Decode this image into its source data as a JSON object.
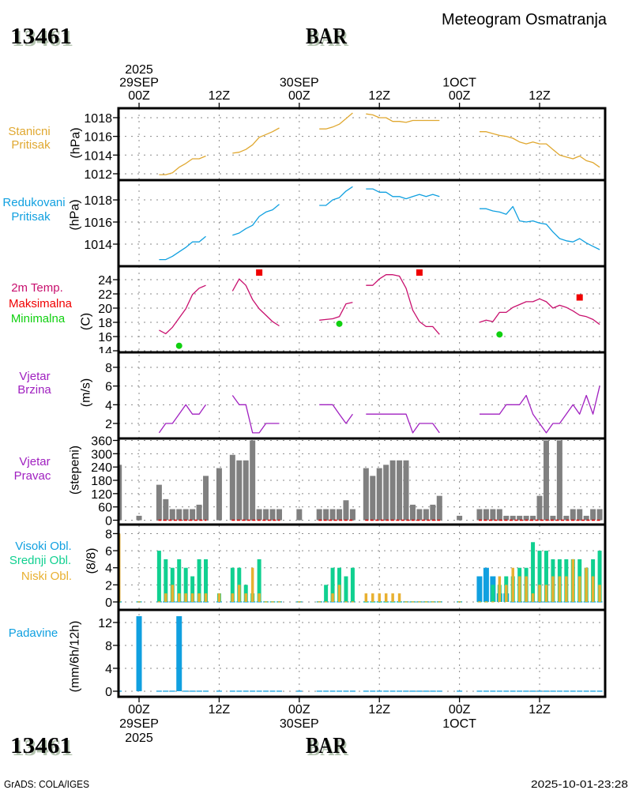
{
  "header": {
    "station_id": "13461",
    "station_name": "BAR",
    "title": "Meteogram Osmatranja"
  },
  "footer": {
    "station_id": "13461",
    "station_name": "BAR",
    "credit": "GrADS: COLA/IGES",
    "timestamp": "2025-10-01-23:28"
  },
  "time_axis": {
    "xlim_hours": [
      -3.08,
      69.82
    ],
    "grid_hours": [
      0,
      12,
      24,
      36,
      48,
      60
    ],
    "top_labels": [
      {
        "hour": 0,
        "lines": [
          "2025",
          "29SEP",
          "00Z"
        ]
      },
      {
        "hour": 12,
        "lines": [
          "12Z"
        ]
      },
      {
        "hour": 24,
        "lines": [
          "30SEP",
          "00Z"
        ]
      },
      {
        "hour": 36,
        "lines": [
          "12Z"
        ]
      },
      {
        "hour": 48,
        "lines": [
          "1OCT",
          "00Z"
        ]
      },
      {
        "hour": 60,
        "lines": [
          "12Z"
        ]
      }
    ],
    "bottom_labels": [
      {
        "hour": 0,
        "lines": [
          "00Z",
          "29SEP",
          "2025"
        ]
      },
      {
        "hour": 12,
        "lines": [
          "12Z"
        ]
      },
      {
        "hour": 24,
        "lines": [
          "00Z",
          "30SEP"
        ]
      },
      {
        "hour": 36,
        "lines": [
          "12Z"
        ]
      },
      {
        "hour": 48,
        "lines": [
          "00Z",
          "1OCT"
        ]
      },
      {
        "hour": 60,
        "lines": [
          "12Z"
        ]
      }
    ]
  },
  "chart_data": [
    {
      "id": "station-pressure",
      "type": "line",
      "title": "Stanicni Pritisak",
      "labels": [
        {
          "text": "Stanicni",
          "color": "#E0A830"
        },
        {
          "text": "Pritisak",
          "color": "#E0A830"
        }
      ],
      "ylabel": "(hPa)",
      "ylim": [
        1011.32,
        1019.01
      ],
      "yticks": [
        1012,
        1014,
        1016,
        1018
      ],
      "grid": true,
      "series": [
        {
          "name": "Stanicni Pritisak",
          "color": "#E0A830",
          "segments": [
            {
              "start_hour": 3,
              "values": [
                1011.9,
                1011.9,
                1012.1,
                1012.7,
                1013.1,
                1013.6,
                1013.6,
                1013.9
              ]
            },
            {
              "start_hour": 14,
              "values": [
                1014.2,
                1014.3,
                1014.6,
                1015.1,
                1015.9,
                1016.2,
                1016.5,
                1016.9
              ]
            },
            {
              "start_hour": 27,
              "values": [
                1016.8,
                1016.8,
                1017.0,
                1017.3,
                1017.9,
                1018.5
              ]
            },
            {
              "start_hour": 34,
              "values": [
                1018.4,
                1018.3,
                1018.0,
                1018.0,
                1017.6,
                1017.6,
                1017.5,
                1017.7,
                1017.7,
                1017.7,
                1017.7,
                1017.7
              ]
            },
            {
              "start_hour": 51,
              "values": [
                1016.5,
                1016.5,
                1016.3,
                1016.1,
                1016.0,
                1015.8,
                1015.4,
                1015.2,
                1015.4,
                1015.2,
                1015.2,
                1014.6,
                1014.0,
                1013.8,
                1013.6,
                1013.9,
                1013.4,
                1013.2,
                1012.7
              ]
            }
          ]
        }
      ]
    },
    {
      "id": "reduced-pressure",
      "type": "line",
      "title": "Redukovani Pritisak",
      "labels": [
        {
          "text": "Redukovani",
          "color": "#10A0E0"
        },
        {
          "text": "Pritisak",
          "color": "#10A0E0"
        }
      ],
      "ylabel": "(hPa)",
      "ylim": [
        1012.0,
        1019.79
      ],
      "yticks": [
        1014,
        1016,
        1018
      ],
      "grid": true,
      "series": [
        {
          "name": "Redukovani Pritisak",
          "color": "#10A0E0",
          "segments": [
            {
              "start_hour": 3,
              "values": [
                1012.6,
                1012.6,
                1012.9,
                1013.3,
                1013.7,
                1014.2,
                1014.2,
                1014.7
              ]
            },
            {
              "start_hour": 14,
              "values": [
                1014.8,
                1015.0,
                1015.4,
                1015.7,
                1016.5,
                1016.9,
                1017.1,
                1017.6
              ]
            },
            {
              "start_hour": 27,
              "values": [
                1017.5,
                1017.5,
                1018.0,
                1018.2,
                1018.8,
                1019.2
              ]
            },
            {
              "start_hour": 34,
              "values": [
                1019.0,
                1019.0,
                1018.7,
                1018.7,
                1018.3,
                1018.3,
                1018.1,
                1018.3,
                1018.5,
                1018.3,
                1018.5,
                1018.3
              ]
            },
            {
              "start_hour": 51,
              "values": [
                1017.2,
                1017.2,
                1017.0,
                1016.9,
                1016.7,
                1017.4,
                1016.1,
                1016.0,
                1016.1,
                1015.9,
                1015.8,
                1015.1,
                1014.5,
                1014.3,
                1014.2,
                1014.5,
                1014.1,
                1013.8,
                1013.5
              ]
            }
          ]
        }
      ]
    },
    {
      "id": "temperature",
      "type": "line",
      "title": "2m Temp.",
      "labels": [
        {
          "text": "2m Temp.",
          "color": "#C8106E"
        },
        {
          "text": "Maksimalna",
          "color": "#F00000"
        },
        {
          "text": "Minimalna",
          "color": "#10D010"
        }
      ],
      "ylabel": "(C)",
      "ylim": [
        13.78,
        25.89
      ],
      "yticks": [
        14,
        16,
        18,
        20,
        22,
        24
      ],
      "grid": true,
      "series": [
        {
          "name": "2m Temp.",
          "color": "#C8106E",
          "segments": [
            {
              "start_hour": 3,
              "values": [
                16.9,
                16.4,
                17.3,
                18.6,
                19.9,
                21.9,
                22.8,
                23.2
              ]
            },
            {
              "start_hour": 14,
              "values": [
                22.4,
                24.1,
                23.2,
                21.2,
                19.9,
                19.0,
                18.1,
                17.5
              ]
            },
            {
              "start_hour": 27,
              "values": [
                18.3,
                18.4,
                18.5,
                18.8,
                20.6,
                20.8
              ]
            },
            {
              "start_hour": 34,
              "values": [
                23.2,
                23.2,
                24.1,
                24.7,
                24.7,
                24.5,
                22.8,
                19.7,
                18.1,
                17.4,
                17.4,
                16.3
              ]
            },
            {
              "start_hour": 51,
              "values": [
                18.0,
                18.3,
                18.1,
                19.4,
                19.4,
                20.1,
                20.5,
                20.9,
                20.9,
                21.3,
                20.9,
                20.0,
                20.4,
                20.1,
                19.6,
                19.0,
                18.8,
                18.4,
                17.7
              ]
            }
          ]
        }
      ],
      "markers": [
        {
          "name": "Maksimalna",
          "shape": "square",
          "color": "#F00000",
          "points": [
            [
              18,
              25.0
            ],
            [
              42,
              25.0
            ],
            [
              66,
              21.5
            ]
          ]
        },
        {
          "name": "Minimalna",
          "shape": "circle",
          "color": "#10D010",
          "points": [
            [
              6,
              14.7
            ],
            [
              30,
              17.8
            ],
            [
              54,
              16.3
            ]
          ]
        }
      ]
    },
    {
      "id": "wind-speed",
      "type": "line",
      "title": "Vjetar Brzina",
      "labels": [
        {
          "text": "Vjetar",
          "color": "#A020C0"
        },
        {
          "text": "Brzina",
          "color": "#A020C0"
        }
      ],
      "ylabel": "(m/s)",
      "ylim": [
        0.4,
        9.6
      ],
      "yticks": [
        2,
        4,
        6,
        8
      ],
      "grid": true,
      "series": [
        {
          "name": "Vjetar Brzina",
          "color": "#A020C0",
          "segments": [
            {
              "start_hour": 3,
              "values": [
                1,
                2,
                2,
                3,
                4,
                3,
                3,
                4
              ]
            },
            {
              "start_hour": 14,
              "values": [
                5,
                4,
                4,
                1,
                1,
                2,
                2,
                2
              ]
            },
            {
              "start_hour": 27,
              "values": [
                4,
                4,
                4,
                3,
                2,
                3
              ]
            },
            {
              "start_hour": 34,
              "values": [
                3,
                3,
                3,
                3,
                3,
                3,
                3,
                1,
                2,
                2,
                2,
                1
              ]
            },
            {
              "start_hour": 51,
              "values": [
                3,
                3,
                3,
                3,
                4,
                4,
                4,
                5,
                3,
                2,
                1,
                2,
                2,
                3,
                4,
                3,
                5,
                3,
                6
              ]
            }
          ]
        }
      ]
    },
    {
      "id": "wind-direction",
      "type": "bar",
      "title": "Vjetar Pravac",
      "labels": [
        {
          "text": "Vjetar",
          "color": "#A020C0"
        },
        {
          "text": "Pravac",
          "color": "#A020C0"
        }
      ],
      "ylabel": "(stepeni)",
      "ylim": [
        -19.6,
        368.9
      ],
      "yticks": [
        0,
        60,
        120,
        180,
        240,
        300,
        360
      ],
      "grid": true,
      "color": "#808080",
      "hours": [
        -3,
        0,
        3,
        4,
        5,
        6,
        7,
        8,
        9,
        10,
        12,
        14,
        15,
        16,
        17,
        18,
        19,
        20,
        21,
        24,
        27,
        28,
        29,
        30,
        31,
        32,
        34,
        35,
        36,
        37,
        38,
        39,
        40,
        41,
        42,
        43,
        44,
        45,
        48,
        51,
        52,
        53,
        54,
        55,
        56,
        57,
        58,
        59,
        60,
        61,
        62,
        63,
        64,
        65,
        66,
        67,
        68,
        69
      ],
      "values": [
        250,
        20,
        160,
        95,
        50,
        50,
        50,
        50,
        70,
        200,
        235,
        295,
        270,
        270,
        360,
        50,
        50,
        50,
        50,
        50,
        50,
        50,
        50,
        50,
        90,
        50,
        235,
        200,
        235,
        250,
        270,
        270,
        270,
        70,
        50,
        50,
        70,
        110,
        20,
        50,
        50,
        50,
        50,
        20,
        20,
        20,
        20,
        20,
        110,
        360,
        20,
        360,
        20,
        50,
        50,
        20,
        50,
        50
      ],
      "baseline_segments": {
        "color": "#E00000",
        "hour_ranges": [
          [
            3,
            10
          ],
          [
            14,
            21
          ],
          [
            27,
            32
          ],
          [
            34,
            45
          ],
          [
            51,
            69
          ]
        ]
      }
    },
    {
      "id": "cloud-cover",
      "type": "bar",
      "title": "Oblacnost",
      "labels": [
        {
          "text": "Visoki Obl.",
          "color": "#10A0E0"
        },
        {
          "text": "Srednji Obl.",
          "color": "#10D090"
        },
        {
          "text": "Niski Obl.",
          "color": "#E8B030"
        }
      ],
      "ylabel": "(8/8)",
      "ylim": [
        -0.93,
        9.06
      ],
      "yticks": [
        0,
        2,
        4,
        6,
        8
      ],
      "grid": true,
      "hours": [
        -3,
        0,
        3,
        4,
        5,
        6,
        7,
        8,
        9,
        10,
        12,
        14,
        15,
        16,
        17,
        18,
        19,
        20,
        21,
        24,
        27,
        28,
        29,
        30,
        31,
        32,
        34,
        35,
        36,
        37,
        38,
        39,
        40,
        41,
        42,
        43,
        44,
        45,
        48,
        51,
        52,
        53,
        54,
        55,
        56,
        57,
        58,
        59,
        60,
        61,
        62,
        63,
        64,
        65,
        66,
        67,
        68,
        69
      ],
      "series": [
        {
          "name": "Visoki Obl.",
          "color": "#10A0E0",
          "values": [
            0,
            0,
            0,
            0,
            0,
            0,
            0,
            0,
            0,
            0,
            0,
            0,
            0,
            0,
            0,
            0,
            0,
            0,
            0,
            0,
            0,
            0,
            0,
            0,
            0,
            0,
            0,
            0,
            0,
            0,
            0,
            0,
            0,
            0,
            0,
            0,
            0,
            0,
            0,
            3,
            4,
            3,
            1,
            1,
            0,
            0,
            0,
            0,
            0,
            0,
            0,
            0,
            0,
            0,
            0,
            0,
            0,
            0
          ]
        },
        {
          "name": "Srednji Obl.",
          "color": "#10D090",
          "values": [
            0,
            0,
            6,
            5,
            4,
            5,
            4,
            3,
            5,
            5,
            1,
            4,
            4,
            2,
            1,
            5,
            0,
            0,
            0,
            0,
            0,
            2,
            4,
            4,
            3,
            4,
            0,
            0,
            0,
            0,
            0,
            0,
            0,
            0,
            0,
            0,
            0,
            0,
            0,
            0,
            0,
            2,
            2,
            3,
            3,
            4,
            4,
            7,
            6,
            6,
            5,
            5,
            5,
            5,
            5,
            4,
            5,
            6
          ]
        },
        {
          "name": "Niski Obl.",
          "color": "#E8B030",
          "values": [
            8,
            0,
            0,
            1,
            2,
            1,
            1,
            1,
            1,
            1,
            1,
            1,
            2,
            1,
            4,
            1,
            0,
            0,
            0,
            0,
            0,
            0,
            1,
            2,
            0,
            0,
            1,
            1,
            1,
            1,
            1,
            1,
            0,
            0,
            0,
            0,
            0,
            0,
            0,
            0,
            0,
            0,
            3,
            2,
            4,
            3,
            3,
            1,
            2,
            2,
            3,
            3,
            3,
            5,
            3,
            4,
            3,
            2
          ]
        }
      ]
    },
    {
      "id": "precipitation",
      "type": "bar",
      "title": "Padavine",
      "labels": [
        {
          "text": "Padavine",
          "color": "#10A0E0"
        }
      ],
      "ylabel": "(mm/6h/12h)",
      "ylim": [
        -0.97,
        14.2
      ],
      "yticks": [
        0,
        4,
        8,
        12
      ],
      "grid": true,
      "color": "#10A0E0",
      "hours": [
        -3,
        0,
        3,
        4,
        5,
        6,
        7,
        8,
        9,
        10,
        12,
        14,
        15,
        16,
        17,
        18,
        19,
        20,
        21,
        24,
        27,
        28,
        29,
        30,
        31,
        32,
        34,
        35,
        36,
        37,
        38,
        39,
        40,
        41,
        42,
        43,
        44,
        45,
        48,
        51,
        52,
        53,
        54,
        55,
        56,
        57,
        58,
        59,
        60,
        61,
        62,
        63,
        64,
        65,
        66,
        67,
        68,
        69
      ],
      "values": [
        0,
        13.1,
        0,
        0,
        0,
        13.1,
        0,
        0,
        0,
        0,
        0,
        0,
        0,
        0,
        0,
        0,
        0,
        0,
        0,
        0,
        0,
        0,
        0,
        0,
        0,
        0,
        0,
        0,
        0,
        0,
        0,
        0,
        0,
        0,
        0,
        0,
        0,
        0,
        0,
        0,
        0,
        0,
        0,
        0,
        0,
        0,
        0,
        0,
        0,
        0,
        0,
        0,
        0,
        0,
        0,
        0,
        0,
        0
      ]
    }
  ]
}
